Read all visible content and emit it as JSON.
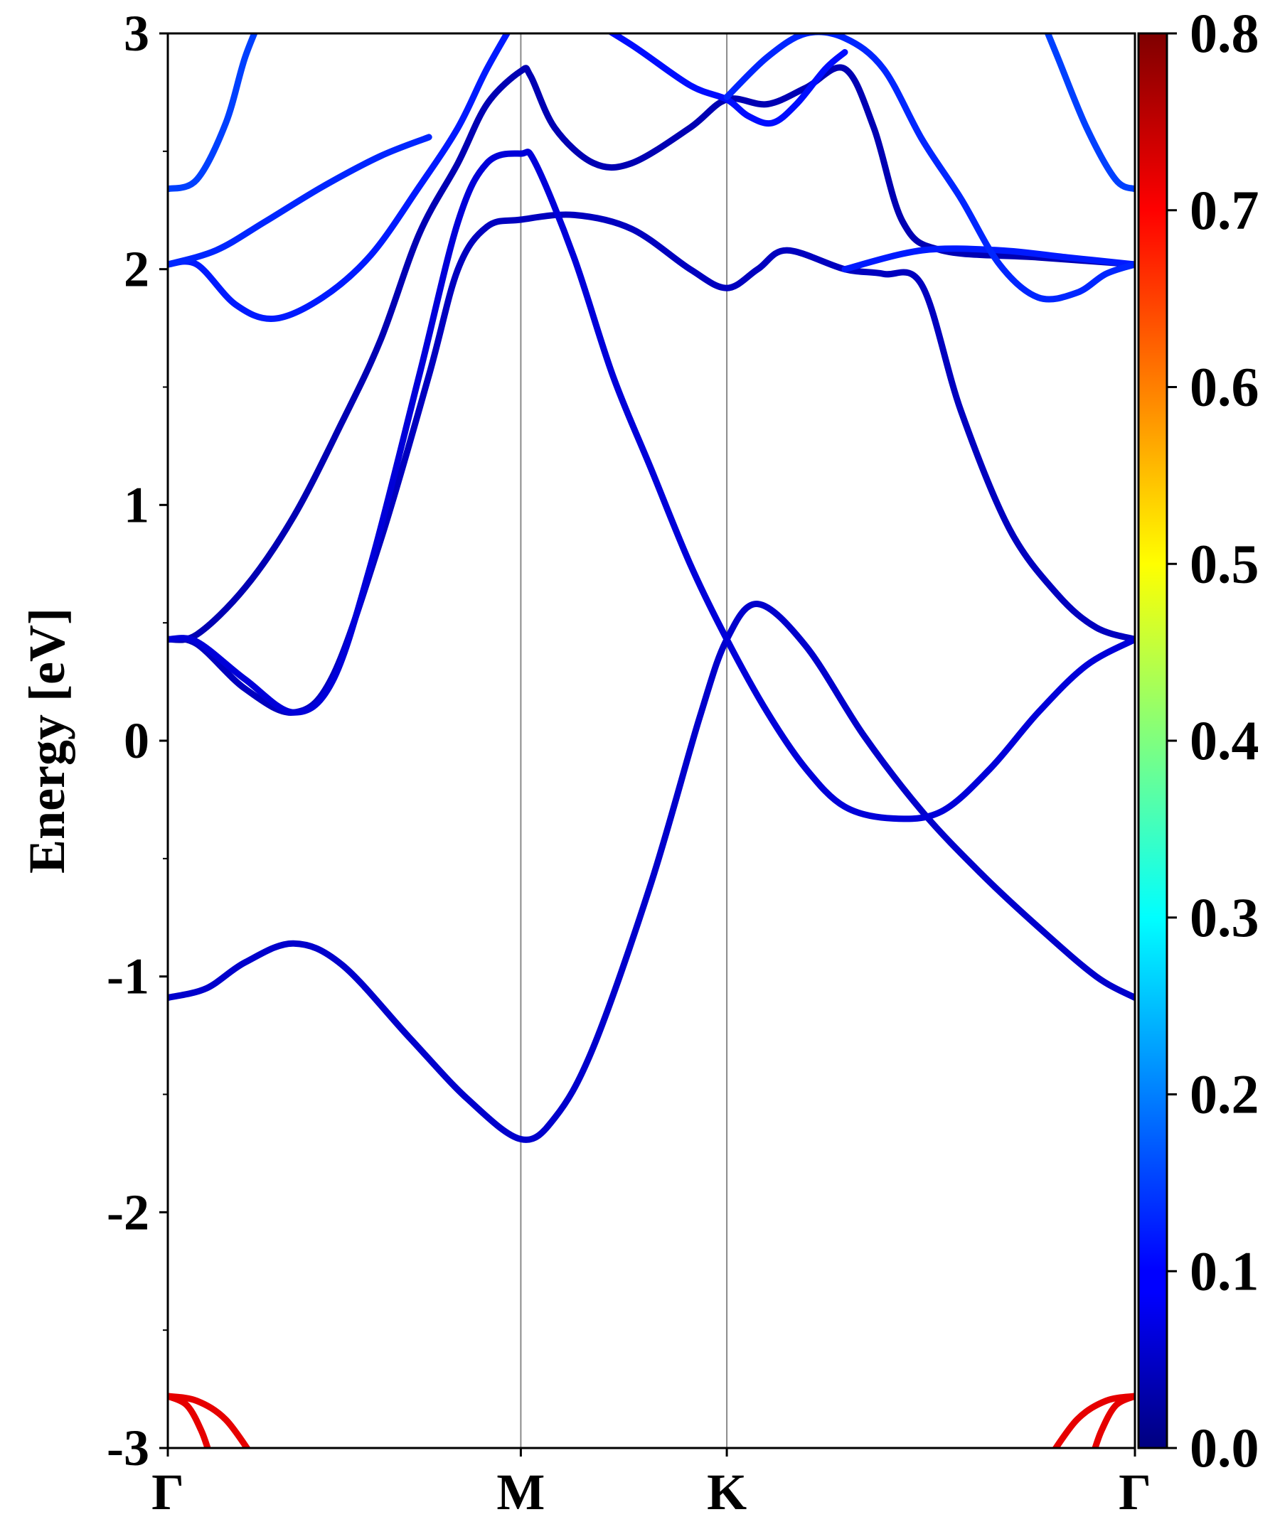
{
  "chart_data": {
    "type": "line",
    "title": "",
    "xlabel": "",
    "ylabel": "Energy [eV]",
    "ylim": [
      -3,
      3
    ],
    "yticks": [
      -3,
      -2,
      -1,
      0,
      1,
      2,
      3
    ],
    "high_symmetry_points": [
      {
        "label": "Γ",
        "k": 0.0
      },
      {
        "label": "M",
        "k": 0.365
      },
      {
        "label": "K",
        "k": 0.578
      },
      {
        "label": "Γ",
        "k": 1.0
      }
    ],
    "colorbar": {
      "colormap": "jet",
      "range": [
        0.0,
        0.8
      ],
      "ticks": [
        "0.0",
        "0.1",
        "0.2",
        "0.3",
        "0.4",
        "0.5",
        "0.6",
        "0.7",
        "0.8"
      ]
    },
    "series": [
      {
        "weight": 0.06,
        "points": [
          [
            0,
            -1.09
          ],
          [
            0.04,
            -1.05
          ],
          [
            0.08,
            -0.94
          ],
          [
            0.13,
            -0.86
          ],
          [
            0.18,
            -0.95
          ],
          [
            0.25,
            -1.26
          ],
          [
            0.31,
            -1.52
          ],
          [
            0.365,
            -1.69
          ],
          [
            0.4,
            -1.6
          ],
          [
            0.44,
            -1.3
          ],
          [
            0.5,
            -0.6
          ],
          [
            0.55,
            0.1
          ],
          [
            0.578,
            0.43
          ],
          [
            0.61,
            0.58
          ],
          [
            0.66,
            0.4
          ],
          [
            0.72,
            0.02
          ],
          [
            0.78,
            -0.3
          ],
          [
            0.84,
            -0.56
          ],
          [
            0.9,
            -0.79
          ],
          [
            0.96,
            -1.0
          ],
          [
            1.0,
            -1.09
          ]
        ]
      },
      {
        "weight": 0.05,
        "points": [
          [
            0,
            0.43
          ],
          [
            0.03,
            0.41
          ],
          [
            0.08,
            0.22
          ],
          [
            0.13,
            0.12
          ],
          [
            0.17,
            0.27
          ],
          [
            0.22,
            0.85
          ],
          [
            0.27,
            1.55
          ],
          [
            0.3,
            2.0
          ],
          [
            0.33,
            2.18
          ],
          [
            0.365,
            2.21
          ],
          [
            0.42,
            2.23
          ],
          [
            0.48,
            2.17
          ],
          [
            0.54,
            2.0
          ],
          [
            0.578,
            1.92
          ],
          [
            0.61,
            2.0
          ],
          [
            0.64,
            2.08
          ],
          [
            0.7,
            2.0
          ],
          [
            0.74,
            1.98
          ],
          [
            0.78,
            1.93
          ],
          [
            0.82,
            1.4
          ],
          [
            0.87,
            0.9
          ],
          [
            0.92,
            0.62
          ],
          [
            0.96,
            0.48
          ],
          [
            1.0,
            0.43
          ]
        ]
      },
      {
        "weight": 0.04,
        "points": [
          [
            0,
            0.43
          ],
          [
            0.03,
            0.45
          ],
          [
            0.08,
            0.65
          ],
          [
            0.13,
            0.95
          ],
          [
            0.18,
            1.35
          ],
          [
            0.22,
            1.7
          ],
          [
            0.26,
            2.15
          ],
          [
            0.3,
            2.45
          ],
          [
            0.33,
            2.7
          ],
          [
            0.365,
            2.84
          ],
          [
            0.375,
            2.82
          ],
          [
            0.4,
            2.6
          ],
          [
            0.44,
            2.45
          ],
          [
            0.48,
            2.45
          ],
          [
            0.54,
            2.6
          ],
          [
            0.578,
            2.72
          ],
          [
            0.62,
            2.7
          ],
          [
            0.66,
            2.77
          ],
          [
            0.7,
            2.85
          ],
          [
            0.73,
            2.6
          ],
          [
            0.76,
            2.2
          ],
          [
            0.8,
            2.08
          ],
          [
            0.9,
            2.05
          ],
          [
            1.0,
            2.02
          ]
        ]
      },
      {
        "weight": 0.07,
        "points": [
          [
            0,
            0.43
          ],
          [
            0.03,
            0.42
          ],
          [
            0.08,
            0.26
          ],
          [
            0.13,
            0.12
          ],
          [
            0.17,
            0.25
          ],
          [
            0.21,
            0.75
          ],
          [
            0.26,
            1.55
          ],
          [
            0.3,
            2.2
          ],
          [
            0.33,
            2.45
          ],
          [
            0.365,
            2.49
          ],
          [
            0.38,
            2.45
          ],
          [
            0.42,
            2.05
          ],
          [
            0.46,
            1.55
          ],
          [
            0.5,
            1.15
          ],
          [
            0.54,
            0.75
          ],
          [
            0.578,
            0.43
          ],
          [
            0.62,
            0.12
          ],
          [
            0.66,
            -0.12
          ],
          [
            0.7,
            -0.28
          ],
          [
            0.75,
            -0.33
          ],
          [
            0.8,
            -0.3
          ],
          [
            0.85,
            -0.12
          ],
          [
            0.9,
            0.12
          ],
          [
            0.95,
            0.32
          ],
          [
            1.0,
            0.43
          ]
        ]
      },
      {
        "weight": 0.12,
        "points": [
          [
            0,
            2.02
          ],
          [
            0.03,
            2.02
          ],
          [
            0.07,
            1.85
          ],
          [
            0.11,
            1.79
          ],
          [
            0.16,
            1.88
          ],
          [
            0.21,
            2.06
          ],
          [
            0.26,
            2.35
          ],
          [
            0.3,
            2.6
          ],
          [
            0.33,
            2.85
          ],
          [
            0.365,
            3.1
          ]
        ]
      },
      {
        "weight": 0.13,
        "points": [
          [
            0,
            2.02
          ],
          [
            0.05,
            2.08
          ],
          [
            0.1,
            2.2
          ],
          [
            0.16,
            2.35
          ],
          [
            0.22,
            2.48
          ],
          [
            0.27,
            2.56
          ]
        ]
      },
      {
        "weight": 0.11,
        "points": [
          [
            0.42,
            3.1
          ],
          [
            0.48,
            2.95
          ],
          [
            0.54,
            2.78
          ],
          [
            0.578,
            2.72
          ],
          [
            0.6,
            2.65
          ],
          [
            0.625,
            2.62
          ],
          [
            0.65,
            2.7
          ],
          [
            0.68,
            2.85
          ],
          [
            0.7,
            2.92
          ]
        ]
      },
      {
        "weight": 0.12,
        "points": [
          [
            0.7,
            2.0
          ],
          [
            0.78,
            2.08
          ],
          [
            0.86,
            2.08
          ],
          [
            0.93,
            2.05
          ],
          [
            1.0,
            2.02
          ]
        ]
      },
      {
        "weight": 0.13,
        "points": [
          [
            0.578,
            2.73
          ],
          [
            0.62,
            2.9
          ],
          [
            0.66,
            3.0
          ],
          [
            0.7,
            2.98
          ],
          [
            0.74,
            2.85
          ],
          [
            0.78,
            2.55
          ],
          [
            0.82,
            2.3
          ],
          [
            0.86,
            2.02
          ],
          [
            0.9,
            1.88
          ],
          [
            0.94,
            1.9
          ],
          [
            0.97,
            1.98
          ],
          [
            1.0,
            2.02
          ]
        ]
      },
      {
        "weight": 0.15,
        "points": [
          [
            0,
            2.34
          ],
          [
            0.03,
            2.38
          ],
          [
            0.06,
            2.62
          ],
          [
            0.08,
            2.9
          ],
          [
            0.1,
            3.1
          ]
        ]
      },
      {
        "weight": 0.15,
        "points": [
          [
            0.9,
            3.1
          ],
          [
            0.92,
            2.9
          ],
          [
            0.95,
            2.6
          ],
          [
            0.98,
            2.38
          ],
          [
            1.0,
            2.34
          ]
        ]
      },
      {
        "weight": 0.72,
        "points": [
          [
            0,
            -2.78
          ],
          [
            0.03,
            -2.8
          ],
          [
            0.06,
            -2.88
          ],
          [
            0.09,
            -3.05
          ]
        ]
      },
      {
        "weight": 0.72,
        "points": [
          [
            0,
            -2.78
          ],
          [
            0.02,
            -2.82
          ],
          [
            0.035,
            -2.93
          ],
          [
            0.045,
            -3.05
          ]
        ]
      },
      {
        "weight": 0.72,
        "points": [
          [
            1.0,
            -2.78
          ],
          [
            0.97,
            -2.8
          ],
          [
            0.94,
            -2.88
          ],
          [
            0.91,
            -3.05
          ]
        ]
      },
      {
        "weight": 0.72,
        "points": [
          [
            1.0,
            -2.78
          ],
          [
            0.98,
            -2.82
          ],
          [
            0.965,
            -2.93
          ],
          [
            0.955,
            -3.05
          ]
        ]
      }
    ]
  }
}
